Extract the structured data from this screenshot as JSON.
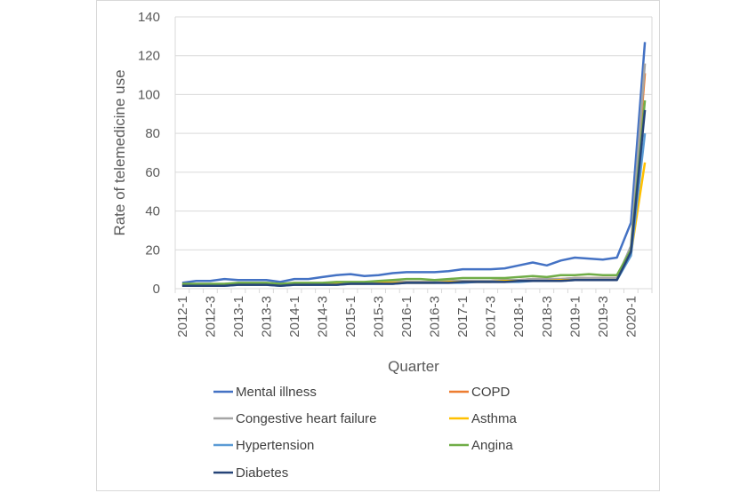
{
  "chart_data": {
    "type": "line",
    "title": "",
    "xlabel": "Quarter",
    "ylabel": "Rate of telemedicine use",
    "ylim": [
      0,
      140
    ],
    "yticks": [
      0,
      20,
      40,
      60,
      80,
      100,
      120,
      140
    ],
    "grid": "horizontal",
    "legend_position": "bottom",
    "categories": [
      "2012-1",
      "2012-2",
      "2012-3",
      "2012-4",
      "2013-1",
      "2013-2",
      "2013-3",
      "2013-4",
      "2014-1",
      "2014-2",
      "2014-3",
      "2014-4",
      "2015-1",
      "2015-2",
      "2015-3",
      "2015-4",
      "2016-1",
      "2016-2",
      "2016-3",
      "2016-4",
      "2017-1",
      "2017-2",
      "2017-3",
      "2017-4",
      "2018-1",
      "2018-2",
      "2018-3",
      "2018-4",
      "2019-1",
      "2019-2",
      "2019-3",
      "2019-4",
      "2020-1",
      "2020-2"
    ],
    "tick_labels": [
      "2012-1",
      "2012-3",
      "2013-1",
      "2013-3",
      "2014-1",
      "2014-3",
      "2015-1",
      "2015-3",
      "2016-1",
      "2016-3",
      "2017-1",
      "2017-3",
      "2018-1",
      "2018-3",
      "2019-1",
      "2019-3",
      "2020-1"
    ],
    "series": [
      {
        "name": "Mental illness",
        "color": "#4472C4",
        "values": [
          3,
          4,
          4,
          5,
          4.5,
          4.5,
          4.5,
          3.5,
          5,
          5,
          6,
          7,
          7.5,
          6.5,
          7,
          8,
          8.5,
          8.5,
          8.5,
          9,
          10,
          10,
          10,
          10.5,
          12,
          13.5,
          12,
          14.5,
          16,
          15.5,
          15,
          16,
          34,
          127
        ]
      },
      {
        "name": "COPD",
        "color": "#ED7D31",
        "values": [
          2,
          2,
          2,
          2,
          2.5,
          2.5,
          2.5,
          2,
          2.5,
          2.5,
          2.5,
          3,
          3,
          3,
          3,
          3.5,
          3.5,
          3.5,
          3.5,
          4,
          4,
          4,
          4,
          4.5,
          4.5,
          5,
          5,
          5,
          5.5,
          5.5,
          5.5,
          5.5,
          21,
          111
        ]
      },
      {
        "name": "Congestive heart failure",
        "color": "#A5A5A5",
        "values": [
          2,
          2,
          2,
          2,
          2.5,
          2.5,
          2.5,
          2,
          2.5,
          2.5,
          2.5,
          3,
          3,
          3,
          3,
          3.5,
          3.5,
          3.5,
          3.5,
          4,
          4,
          4,
          4,
          4.5,
          4.5,
          5,
          5,
          5,
          5.5,
          5.5,
          5.5,
          5.5,
          22,
          116
        ]
      },
      {
        "name": "Asthma",
        "color": "#FFC000",
        "values": [
          2,
          2,
          2,
          2,
          2,
          2,
          2,
          2,
          2,
          2,
          2.5,
          2.5,
          2.5,
          2.5,
          3,
          3,
          3,
          3,
          3,
          3.5,
          3.5,
          3.5,
          3.5,
          4,
          4,
          4,
          4,
          4.5,
          4.5,
          4.5,
          4.5,
          4.5,
          18,
          65
        ]
      },
      {
        "name": "Hypertension",
        "color": "#5B9BD5",
        "values": [
          1.5,
          1.5,
          1.5,
          1.5,
          2,
          2,
          2,
          1.5,
          2,
          2,
          2,
          2,
          2.5,
          2.5,
          2.5,
          2.5,
          3,
          3,
          3,
          3,
          3,
          3.5,
          3.5,
          3.5,
          3.5,
          4,
          4,
          4,
          4.5,
          4.5,
          4.5,
          4.5,
          17,
          80
        ]
      },
      {
        "name": "Angina",
        "color": "#70AD47",
        "values": [
          2.5,
          2.5,
          2.5,
          2.5,
          3,
          3,
          3,
          2.5,
          3,
          3,
          3,
          3.5,
          3.5,
          3.5,
          4,
          4.5,
          5,
          5,
          4.5,
          5,
          5.5,
          5.5,
          5.5,
          5.5,
          6,
          6.5,
          6,
          7,
          7,
          7.5,
          7,
          7,
          20,
          97
        ]
      },
      {
        "name": "Diabetes",
        "color": "#264478",
        "values": [
          1.5,
          1.5,
          1.5,
          1.5,
          2,
          2,
          2,
          1.5,
          2,
          2,
          2,
          2,
          2.5,
          2.5,
          2.5,
          2.5,
          3,
          3,
          3,
          3,
          3.5,
          3.5,
          3.5,
          3.5,
          4,
          4,
          4,
          4,
          4.5,
          4.5,
          4.5,
          4.5,
          19,
          92
        ]
      }
    ]
  }
}
